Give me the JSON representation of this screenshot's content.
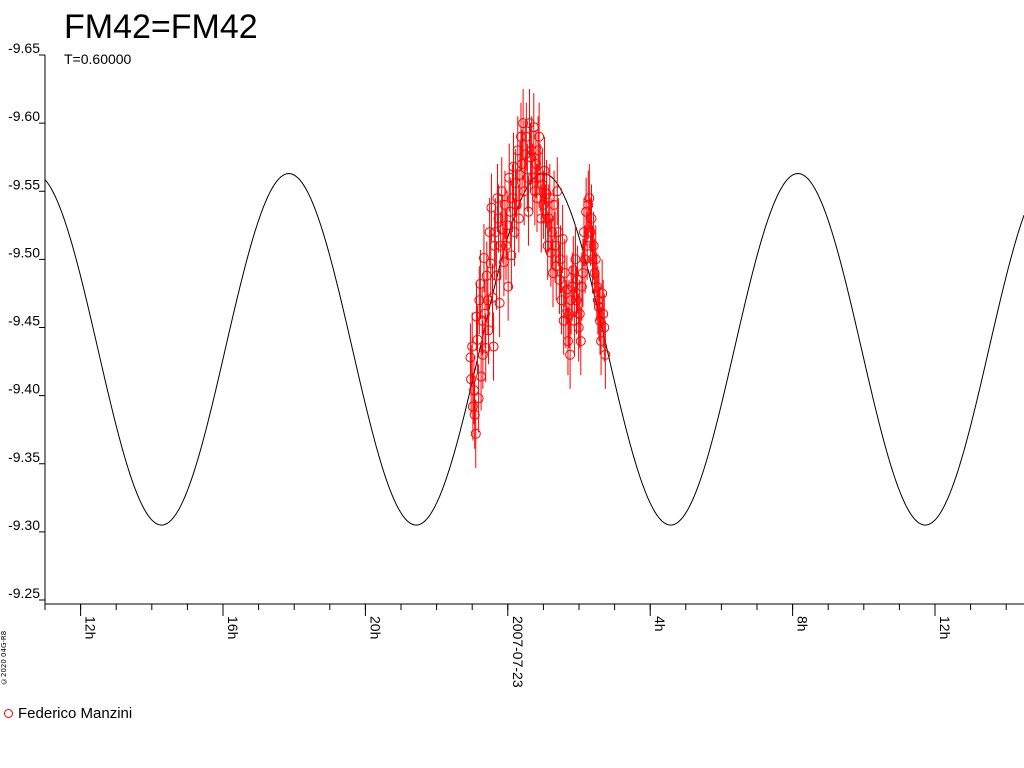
{
  "page": {
    "title": "FM42=FM42",
    "subtitle": "T=0.60000",
    "credit": "©2020 04G-R8"
  },
  "legend": [
    {
      "label": "Federico Manzini",
      "color": "#ff0000",
      "marker": "open-circle"
    }
  ],
  "colors": {
    "observations": "#ff0000",
    "model": "#000000",
    "axes": "#000000"
  },
  "chart_data": {
    "type": "scatter",
    "title": "FM42=FM42",
    "subtitle": "T=0.60000",
    "xlabel": "",
    "ylabel": "",
    "y_inverted": true,
    "ylim": [
      -9.65,
      -9.25
    ],
    "y_ticks": [
      -9.65,
      -9.6,
      -9.55,
      -9.5,
      -9.45,
      -9.4,
      -9.35,
      -9.3,
      -9.25
    ],
    "y_tick_labels": [
      "-9.65",
      "-9.60",
      "-9.55",
      "-9.50",
      "-9.45",
      "-9.40",
      "-9.35",
      "-9.30",
      "-9.25"
    ],
    "xlim": [
      10.9,
      14.7
    ],
    "x_unit": "hours relative to 2007-07-23 00:00 UT (labels show clock hours)",
    "x_ticks": [
      {
        "x": -12,
        "label": "12h"
      },
      {
        "x": -8,
        "label": "16h"
      },
      {
        "x": -4,
        "label": "20h"
      },
      {
        "x": 0,
        "label": "2007-07-23"
      },
      {
        "x": 4,
        "label": "4h"
      },
      {
        "x": 8,
        "label": "8h"
      },
      {
        "x": 12,
        "label": "12h"
      }
    ],
    "x_range_hours": [
      -13.0,
      14.5
    ],
    "model_curve": {
      "type": "sine",
      "period_hours": 7.15,
      "max_mag": -9.563,
      "min_mag": -9.305,
      "max_time_hours": 1.0
    },
    "series": [
      {
        "name": "Federico Manzini",
        "marker": "open-circle",
        "color": "#ff0000",
        "x": [
          -1.05,
          -1.03,
          -1.0,
          -0.98,
          -0.95,
          -0.93,
          -0.9,
          -0.88,
          -0.85,
          -0.82,
          -0.8,
          -0.77,
          -0.75,
          -0.72,
          -0.7,
          -0.67,
          -0.64,
          -0.62,
          -0.59,
          -0.56,
          -0.54,
          -0.51,
          -0.48,
          -0.46,
          -0.43,
          -0.4,
          -0.37,
          -0.35,
          -0.32,
          -0.29,
          -0.26,
          -0.23,
          -0.2,
          -0.17,
          -0.14,
          -0.11,
          -0.08,
          -0.05,
          -0.02,
          0.01,
          0.04,
          0.07,
          0.1,
          0.13,
          0.16,
          0.19,
          0.22,
          0.25,
          0.28,
          0.31,
          0.34,
          0.37,
          0.4,
          0.43,
          0.46,
          0.49,
          0.52,
          0.55,
          0.58,
          0.61,
          0.64,
          0.67,
          0.7,
          0.73,
          0.76,
          0.79,
          0.82,
          0.85,
          0.88,
          0.91,
          0.94,
          0.97,
          1.0,
          1.03,
          1.06,
          1.09,
          1.12,
          1.15,
          1.18,
          1.21,
          1.24,
          1.27,
          1.3,
          1.33,
          1.36,
          1.39,
          1.42,
          1.45,
          1.48,
          1.51,
          1.54,
          1.57,
          1.6,
          1.63,
          1.66,
          1.69,
          1.72,
          1.75,
          1.78,
          1.81,
          1.84,
          1.87,
          1.9,
          1.93,
          1.96,
          1.99,
          2.02,
          2.05,
          2.08,
          2.11,
          2.14,
          2.17,
          2.2,
          2.23,
          2.26,
          2.29,
          2.32,
          2.35,
          2.38,
          2.41,
          2.44,
          2.47,
          2.5,
          2.53,
          2.56,
          2.59,
          2.62,
          2.65,
          2.68,
          2.71,
          2.74
        ],
        "y": [
          -9.428,
          -9.412,
          -9.436,
          -9.392,
          -9.404,
          -9.386,
          -9.372,
          -9.458,
          -9.441,
          -9.398,
          -9.47,
          -9.482,
          -9.414,
          -9.455,
          -9.43,
          -9.501,
          -9.46,
          -9.435,
          -9.488,
          -9.47,
          -9.448,
          -9.52,
          -9.497,
          -9.538,
          -9.472,
          -9.436,
          -9.51,
          -9.52,
          -9.488,
          -9.545,
          -9.53,
          -9.468,
          -9.51,
          -9.55,
          -9.522,
          -9.498,
          -9.54,
          -9.51,
          -9.525,
          -9.48,
          -9.56,
          -9.535,
          -9.503,
          -9.545,
          -9.568,
          -9.52,
          -9.556,
          -9.54,
          -9.58,
          -9.53,
          -9.562,
          -9.59,
          -9.57,
          -9.6,
          -9.55,
          -9.577,
          -9.59,
          -9.56,
          -9.535,
          -9.6,
          -9.575,
          -9.58,
          -9.56,
          -9.597,
          -9.55,
          -9.57,
          -9.545,
          -9.58,
          -9.59,
          -9.56,
          -9.53,
          -9.555,
          -9.54,
          -9.565,
          -9.53,
          -9.548,
          -9.51,
          -9.53,
          -9.545,
          -9.505,
          -9.52,
          -9.49,
          -9.54,
          -9.51,
          -9.495,
          -9.55,
          -9.52,
          -9.485,
          -9.5,
          -9.47,
          -9.515,
          -9.455,
          -9.49,
          -9.46,
          -9.478,
          -9.44,
          -9.46,
          -9.43,
          -9.47,
          -9.48,
          -9.492,
          -9.455,
          -9.5,
          -9.47,
          -9.485,
          -9.45,
          -9.46,
          -9.44,
          -9.48,
          -9.49,
          -9.52,
          -9.5,
          -9.535,
          -9.51,
          -9.54,
          -9.545,
          -9.52,
          -9.53,
          -9.5,
          -9.51,
          -9.49,
          -9.5,
          -9.48,
          -9.47,
          -9.465,
          -9.455,
          -9.44,
          -9.475,
          -9.46,
          -9.45,
          -9.43
        ],
        "y_err": 0.025
      }
    ]
  }
}
